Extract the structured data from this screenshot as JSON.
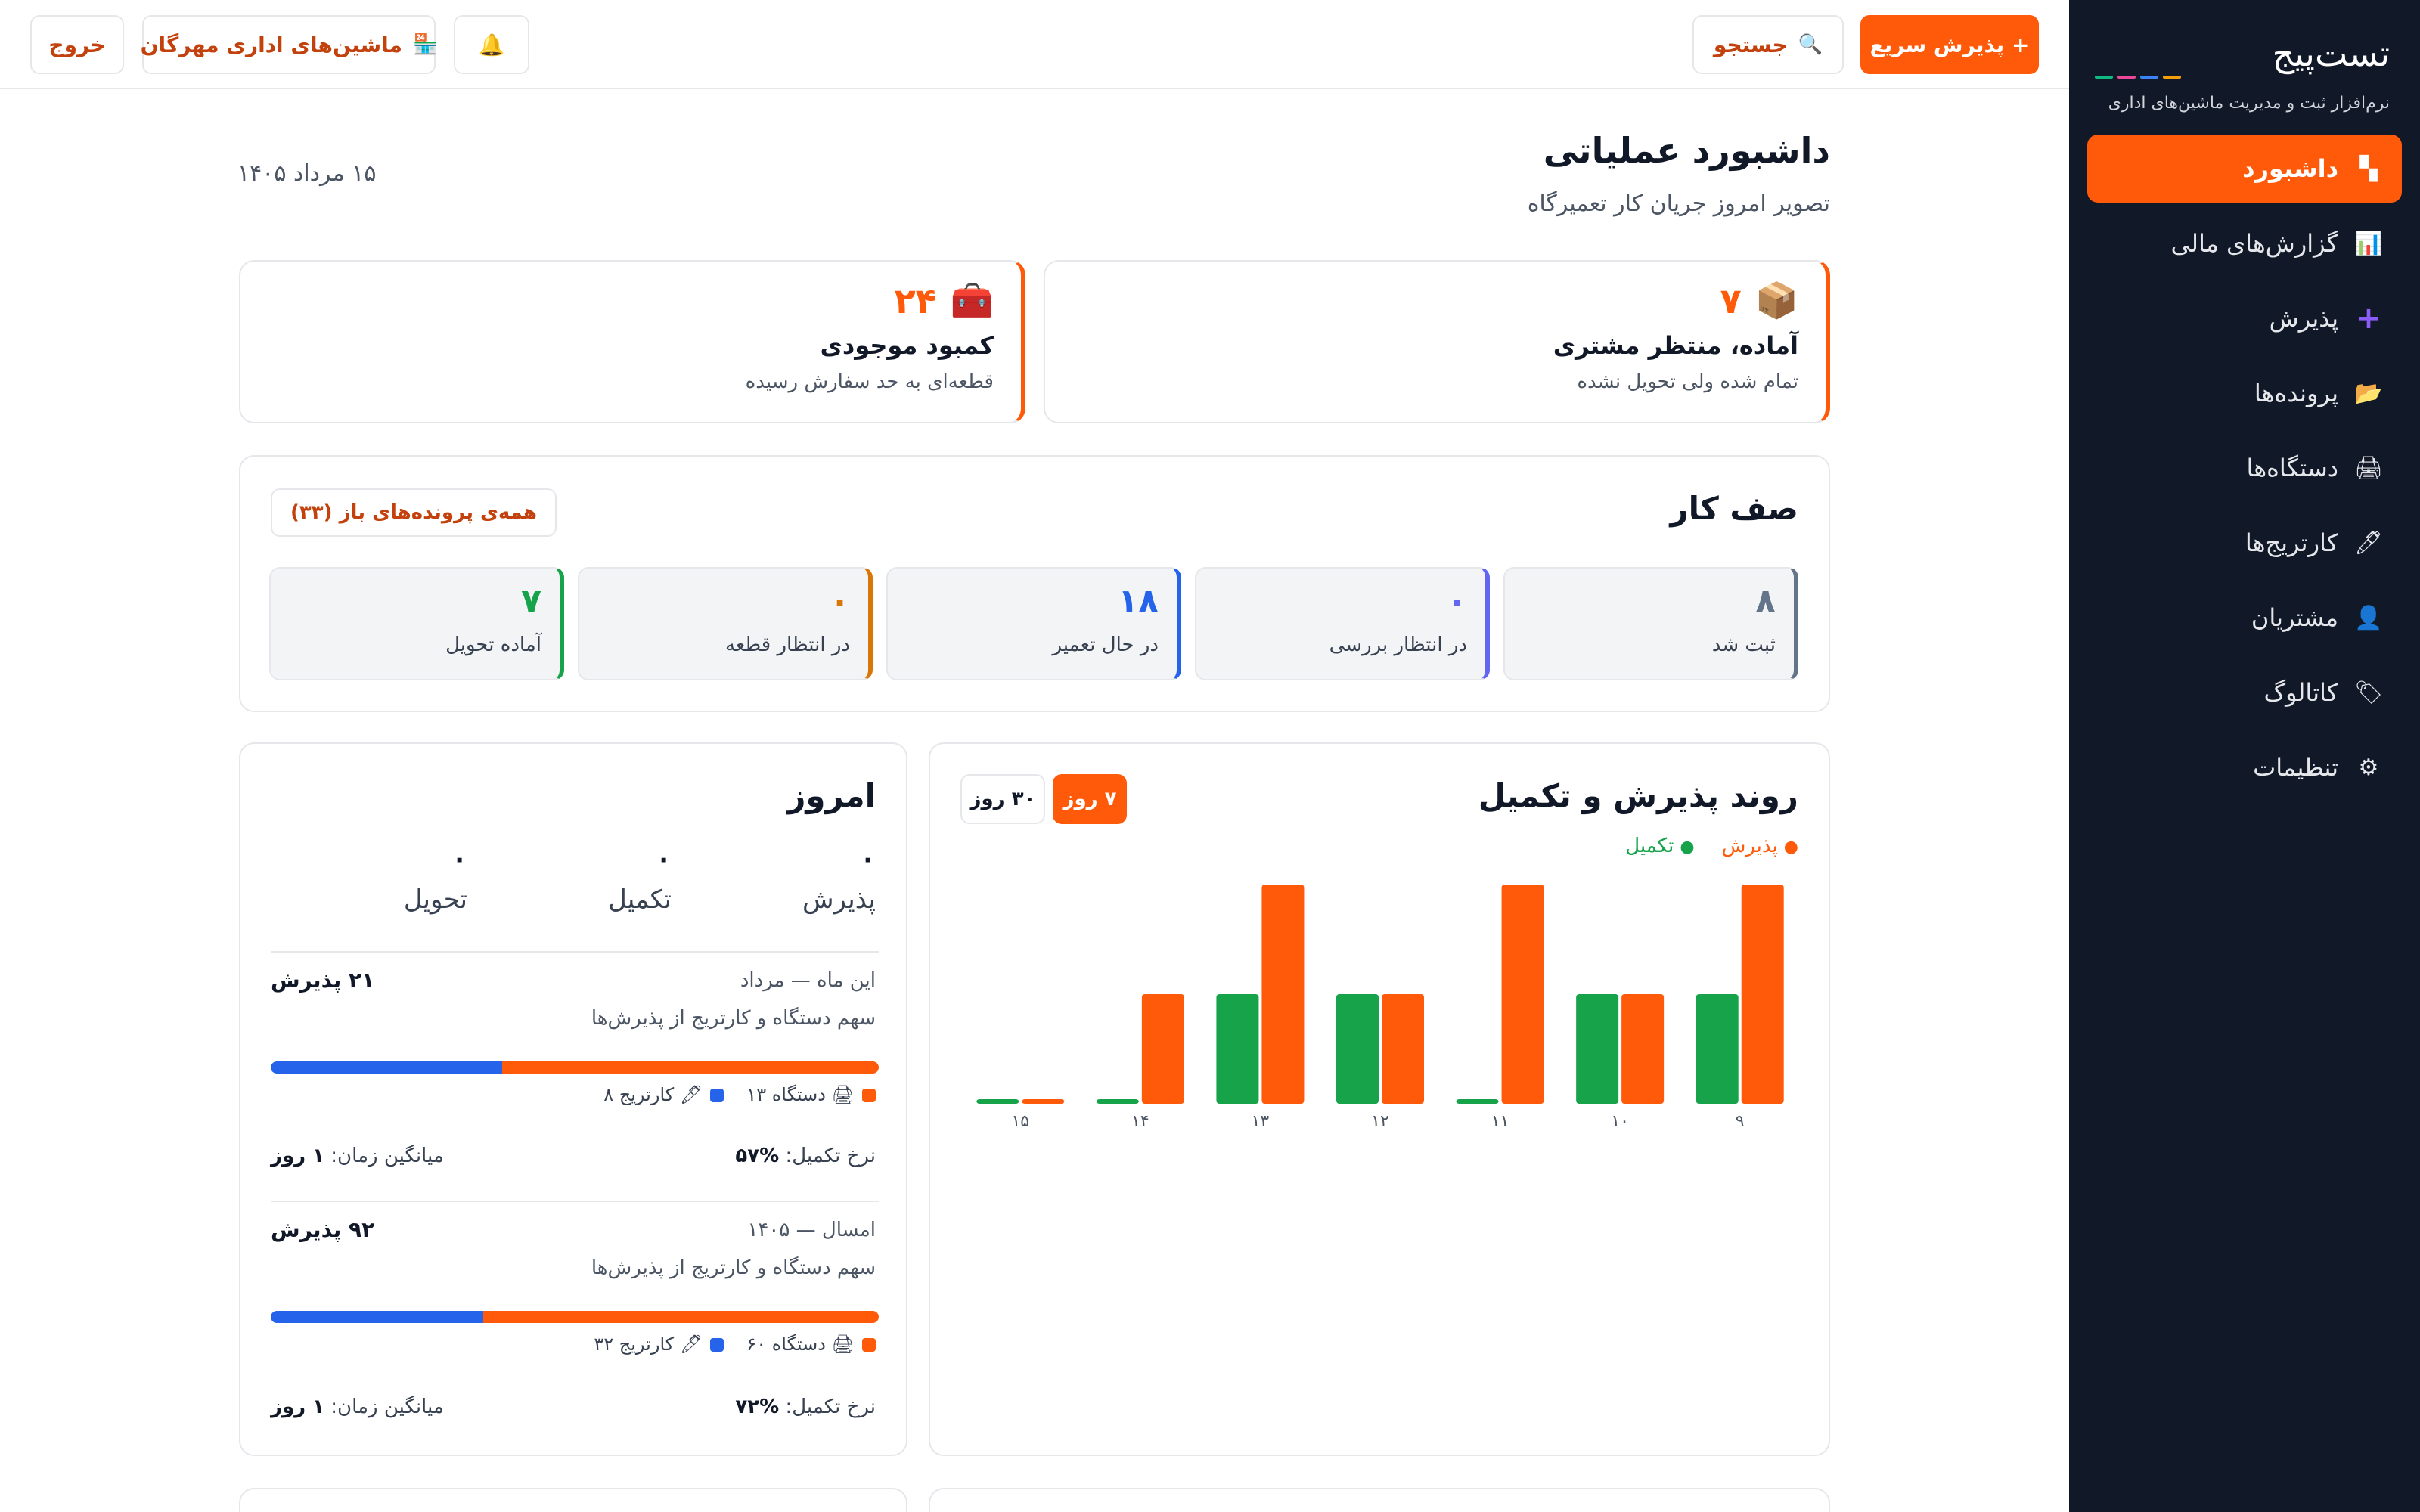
{
  "brand": {
    "logo": "تست‌پیج",
    "tagline": "نرم‌افزار ثبت و مدیریت ماشین‌های اداری",
    "underline_colors": [
      "#f59e0b",
      "#3b82f6",
      "#ec4899",
      "#10b981"
    ]
  },
  "sidebar": {
    "items": [
      {
        "label": "داشبورد",
        "icon": "dashboard-icon",
        "glyph": "▚",
        "active": true
      },
      {
        "label": "گزارش‌های مالی",
        "icon": "bar-chart-icon",
        "glyph": "📊"
      },
      {
        "label": "پذیرش",
        "icon": "plus-icon",
        "glyph": "➕"
      },
      {
        "label": "پرونده‌ها",
        "icon": "folder-icon",
        "glyph": "📂"
      },
      {
        "label": "دستگاه‌ها",
        "icon": "device-icon",
        "glyph": "🖨"
      },
      {
        "label": "کارتریج‌ها",
        "icon": "pen-icon",
        "glyph": "🖊"
      },
      {
        "label": "مشتریان",
        "icon": "user-icon",
        "glyph": "👤"
      },
      {
        "label": "کاتالوگ",
        "icon": "tag-icon",
        "glyph": "🏷"
      },
      {
        "label": "تنظیمات",
        "icon": "gear-icon",
        "glyph": "⚙"
      }
    ]
  },
  "topbar": {
    "quick_admission": "+ پذیرش سریع",
    "search": "جستجو",
    "search_glyph": "🔍",
    "bell_glyph": "🔔",
    "company": "ماشین‌های اداری مهرگان",
    "company_glyph": "🏪",
    "logout": "خروج"
  },
  "header": {
    "title": "داشبورد عملیاتی",
    "subtitle": "تصویر امروز جریان کار تعمیرگاه",
    "date": "۱۵ مرداد ۱۴۰۵"
  },
  "kpis": [
    {
      "value": "۷",
      "glyph": "📦",
      "icon": "package-icon",
      "title": "آماده، منتظر مشتری",
      "subtitle": "تمام شده ولی تحویل نشده"
    },
    {
      "value": "۲۴",
      "glyph": "🧰",
      "icon": "toolbox-icon",
      "title": "کمبود موجودی",
      "subtitle": "قطعه‌ای به حد سفارش رسیده"
    }
  ],
  "queue": {
    "title": "صف کار",
    "all_link": "همه‌ی پرونده‌های باز (۳۳)",
    "tiles": [
      {
        "value": "۸",
        "label": "ثبت شد",
        "color": "#64748b"
      },
      {
        "value": "۰",
        "label": "در انتظار بررسی",
        "color": "#6366f1"
      },
      {
        "value": "۱۸",
        "label": "در حال تعمیر",
        "color": "#2563eb"
      },
      {
        "value": "۰",
        "label": "در انتظار قطعه",
        "color": "#d97706"
      },
      {
        "value": "۷",
        "label": "آماده تحویل",
        "color": "#16a34a"
      }
    ]
  },
  "trend": {
    "title": "روند پذیرش و تکمیل",
    "range_7": "۷ روز",
    "range_30": "۳۰ روز",
    "legend_admission": "پذیرش",
    "legend_completion": "تکمیل"
  },
  "chart_data": {
    "type": "bar",
    "categories": [
      "۹",
      "۱۰",
      "۱۱",
      "۱۲",
      "۱۳",
      "۱۴",
      "۱۵"
    ],
    "series": [
      {
        "name": "پذیرش",
        "color": "#ff5a09",
        "values": [
          2,
          1,
          2,
          1,
          2,
          1,
          0
        ]
      },
      {
        "name": "تکمیل",
        "color": "#16a34a",
        "values": [
          1,
          1,
          0,
          1,
          1,
          0,
          0
        ]
      }
    ],
    "ylim": [
      0,
      2
    ]
  },
  "today": {
    "title": "امروز",
    "stats": [
      {
        "value": "۰",
        "label": "پذیرش"
      },
      {
        "value": "۰",
        "label": "تکمیل"
      },
      {
        "value": "۰",
        "label": "تحویل"
      }
    ],
    "periods": [
      {
        "heading": "این ماه — مرداد",
        "count": "۲۱ پذیرش",
        "share_title": "سهم دستگاه و کارتریج از پذیرش‌ها",
        "device_label": "دستگاه ۱۳",
        "cartridge_label": "کارتریج ۸",
        "device_share": 0.62,
        "completion_label": "نرخ تکمیل:",
        "completion_value": "%۵۷",
        "avg_label": "میانگین زمان:",
        "avg_value": "۱ روز"
      },
      {
        "heading": "امسال — ۱۴۰۵",
        "count": "۹۲ پذیرش",
        "share_title": "سهم دستگاه و کارتریج از پذیرش‌ها",
        "device_label": "دستگاه ۶۰",
        "cartridge_label": "کارتریج ۳۲",
        "device_share": 0.65,
        "completion_label": "نرخ تکمیل:",
        "completion_value": "%۷۲",
        "avg_label": "میانگین زمان:",
        "avg_value": "۱ روز"
      }
    ],
    "device_color": "#ff5a09",
    "cartridge_color": "#2563eb",
    "device_glyph": "🖨",
    "cartridge_glyph": "🖊"
  }
}
